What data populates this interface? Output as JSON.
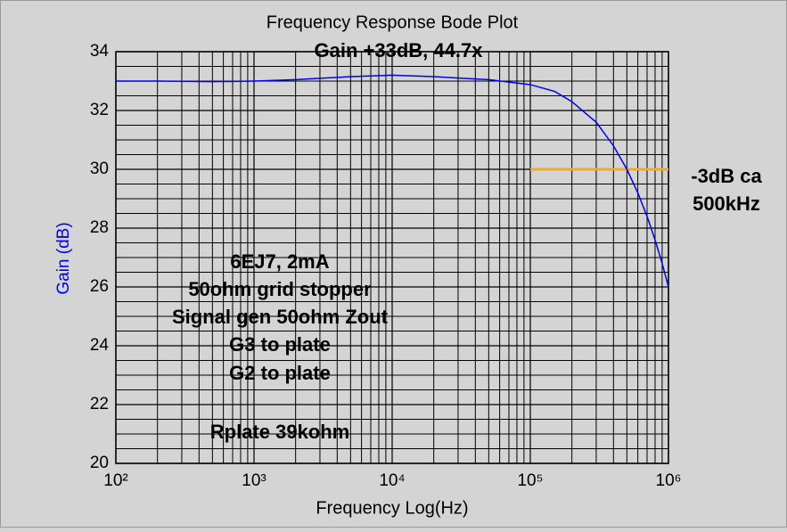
{
  "chart_data": {
    "type": "line",
    "title": "Frequency Response Bode Plot",
    "subtitle": "Gain +33dB, 44.7x",
    "x_label": "Frequency Log(Hz)",
    "y_label": "Gain (dB)",
    "x_scale": "log",
    "xlim": [
      100,
      1000000
    ],
    "xticks": [
      {
        "value": 100,
        "label": "10²"
      },
      {
        "value": 1000,
        "label": "10³"
      },
      {
        "value": 10000,
        "label": "10⁴"
      },
      {
        "value": 100000,
        "label": "10⁵"
      },
      {
        "value": 1000000,
        "label": "10⁶"
      }
    ],
    "ylim": [
      20,
      34
    ],
    "yticks": [
      20,
      22,
      24,
      26,
      28,
      30,
      32,
      34
    ],
    "yminorticks": [
      20.5,
      21,
      21.5,
      22.5,
      23,
      23.5,
      24.5,
      25,
      25.5,
      26.5,
      27,
      27.5,
      28.5,
      29,
      29.5,
      30.5,
      31,
      31.5,
      32.5,
      33,
      33.5
    ],
    "grid": true,
    "series": [
      {
        "color": "#0000ee",
        "x": [
          100,
          200,
          500,
          1000,
          2000,
          5000,
          10000,
          20000,
          50000,
          100000,
          150000,
          200000,
          300000,
          400000,
          500000,
          600000,
          700000,
          800000,
          900000,
          1000000
        ],
        "values": [
          33.0,
          33.0,
          32.98,
          33.0,
          33.05,
          33.15,
          33.2,
          33.15,
          33.05,
          32.88,
          32.65,
          32.3,
          31.6,
          30.8,
          30.0,
          29.2,
          28.4,
          27.6,
          26.8,
          26.0
        ]
      }
    ],
    "reference_line": {
      "color": "#f0a830",
      "x": [
        100000,
        1000000
      ],
      "value": 30
    },
    "annotations": [
      "-3dB ca",
      "500kHz",
      "6EJ7, 2mA",
      "50ohm grid stopper",
      "Signal gen 50ohm Zout",
      "G3 to plate",
      "G2 to plate",
      "Rplate 39kohm"
    ]
  }
}
